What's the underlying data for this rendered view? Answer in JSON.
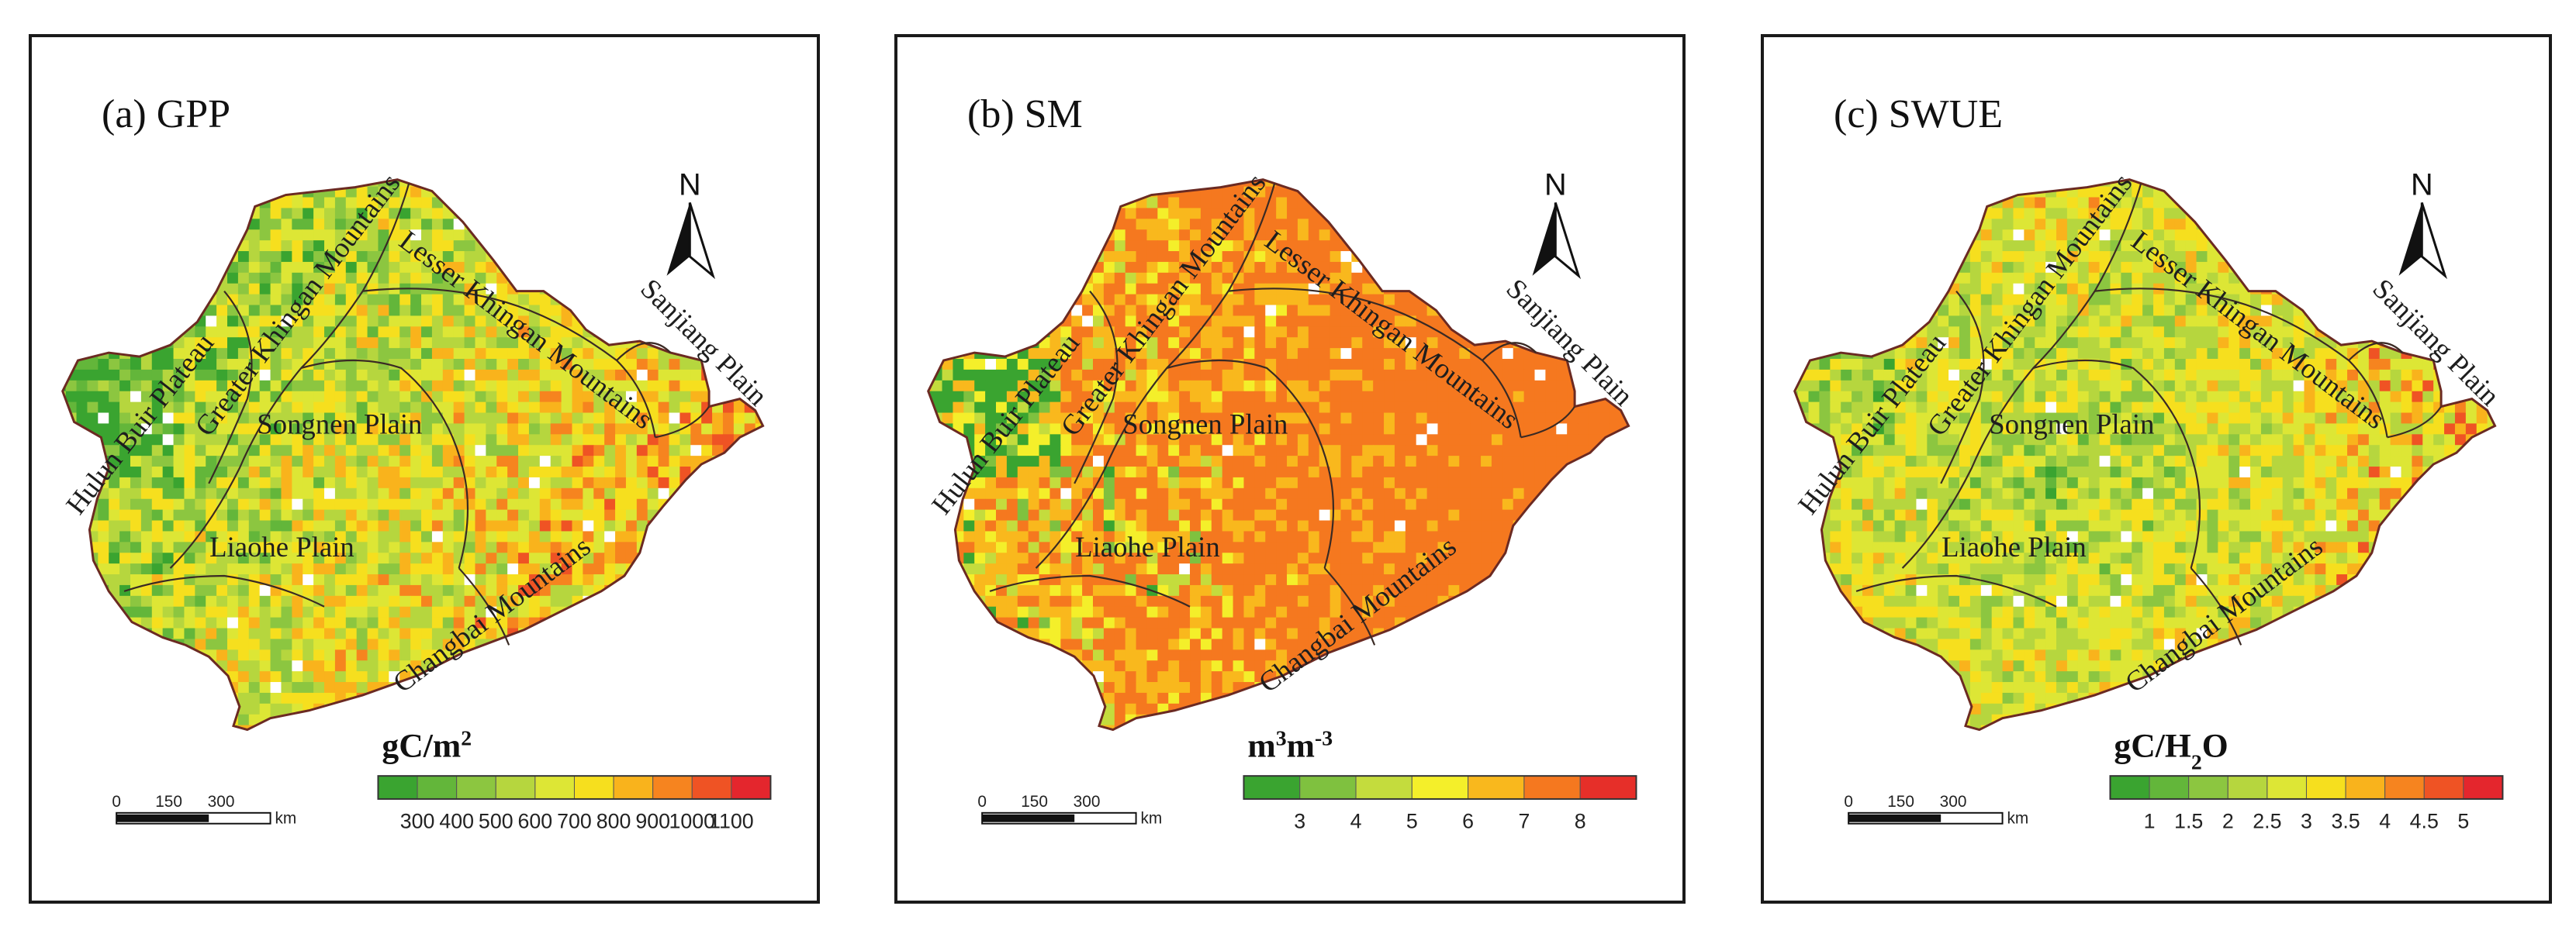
{
  "panels": [
    {
      "id": "gpp",
      "title": "(a) GPP",
      "legend_title_html": "gC/m²",
      "legend_title": {
        "parts": [
          [
            "gC/m",
            "normal"
          ],
          [
            "2",
            "sup"
          ]
        ]
      },
      "ticks": [
        "300",
        "400",
        "500",
        "600",
        "700",
        "800",
        "900",
        "1000",
        "1100"
      ],
      "colors": [
        "#3aa430",
        "#63b63a",
        "#8cc640",
        "#b6d63e",
        "#dde635",
        "#f6df1e",
        "#f9b31c",
        "#f6841f",
        "#ef5324",
        "#e4262d"
      ],
      "palette_weights": [
        0.06,
        0.08,
        0.12,
        0.14,
        0.16,
        0.16,
        0.13,
        0.09,
        0.06
      ]
    },
    {
      "id": "sm",
      "title": "(b) SM",
      "legend_title": {
        "parts": [
          [
            "m",
            "normal"
          ],
          [
            "3",
            "sup"
          ],
          [
            "m",
            "normal"
          ],
          [
            "-3",
            "sup"
          ]
        ]
      },
      "ticks": [
        "3",
        "4",
        "5",
        "6",
        "7",
        "8"
      ],
      "colors": [
        "#3aa430",
        "#7fc13f",
        "#c4dc3d",
        "#f4ef2a",
        "#f9b81d",
        "#f5781f",
        "#e62f29"
      ],
      "palette_weights": [
        0.03,
        0.05,
        0.07,
        0.12,
        0.22,
        0.28,
        0.23
      ]
    },
    {
      "id": "swue",
      "title": "(c) SWUE",
      "legend_title": {
        "parts": [
          [
            "gC/H",
            "normal"
          ],
          [
            "2",
            "sub"
          ],
          [
            "O",
            "normal"
          ]
        ]
      },
      "ticks": [
        "1",
        "1.5",
        "2",
        "2.5",
        "3",
        "3.5",
        "4",
        "4.5",
        "5"
      ],
      "colors": [
        "#3aa430",
        "#63b63a",
        "#8cc640",
        "#b6d63e",
        "#dde635",
        "#f6df1e",
        "#f9b31c",
        "#f6841f",
        "#ef5324",
        "#e4262d"
      ],
      "palette_weights": [
        0.04,
        0.08,
        0.14,
        0.2,
        0.2,
        0.16,
        0.1,
        0.05,
        0.03
      ]
    }
  ],
  "regions": [
    {
      "id": "hulun",
      "text": "Hulun Buir Plateau"
    },
    {
      "id": "greater",
      "text": "Greater Khingan Mountains"
    },
    {
      "id": "lesser",
      "text": "Lesser Khingan Mountains"
    },
    {
      "id": "sanjiang",
      "text": "Sanjiang Plain"
    },
    {
      "id": "songnen",
      "text": "Songnen Plain"
    },
    {
      "id": "liaohe",
      "text": "Liaohe Plain"
    },
    {
      "id": "changbai",
      "text": "Changbai Mountains"
    }
  ],
  "north_arrow": {
    "label": "N"
  },
  "scale_bar": {
    "labels": [
      "0",
      "150",
      "300"
    ],
    "unit": "km"
  }
}
